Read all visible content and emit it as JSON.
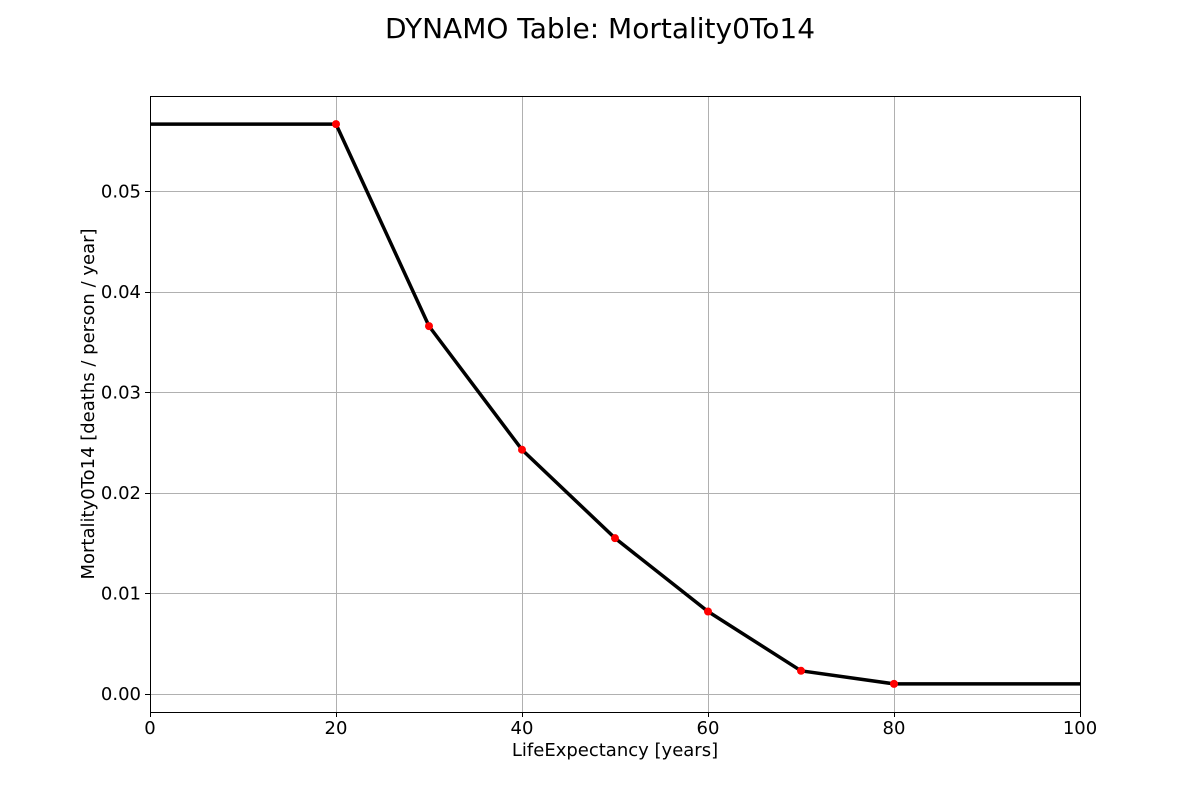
{
  "chart_data": {
    "type": "line",
    "title": "DYNAMO Table: Mortality0To14",
    "xlabel": "LifeExpectancy [years]",
    "ylabel": "Mortality0To14 [deaths / person / year]",
    "xlim": [
      0,
      100
    ],
    "ylim": [
      -0.0018,
      0.0595
    ],
    "xticks": [
      0,
      20,
      40,
      60,
      80,
      100
    ],
    "xtick_labels": [
      "0",
      "20",
      "40",
      "60",
      "80",
      "100"
    ],
    "yticks": [
      0.0,
      0.01,
      0.02,
      0.03,
      0.04,
      0.05
    ],
    "ytick_labels": [
      "0.00",
      "0.01",
      "0.02",
      "0.03",
      "0.04",
      "0.05"
    ],
    "grid": true,
    "line": {
      "x": [
        0,
        20,
        30,
        40,
        50,
        60,
        70,
        80,
        100
      ],
      "y": [
        0.0567,
        0.0567,
        0.0366,
        0.0243,
        0.0155,
        0.0082,
        0.0023,
        0.001,
        0.001
      ],
      "color": "#000000"
    },
    "points": {
      "x": [
        20,
        30,
        40,
        50,
        60,
        70,
        80
      ],
      "y": [
        0.0567,
        0.0366,
        0.0243,
        0.0155,
        0.0082,
        0.0023,
        0.001
      ],
      "color": "#ff0000"
    }
  }
}
